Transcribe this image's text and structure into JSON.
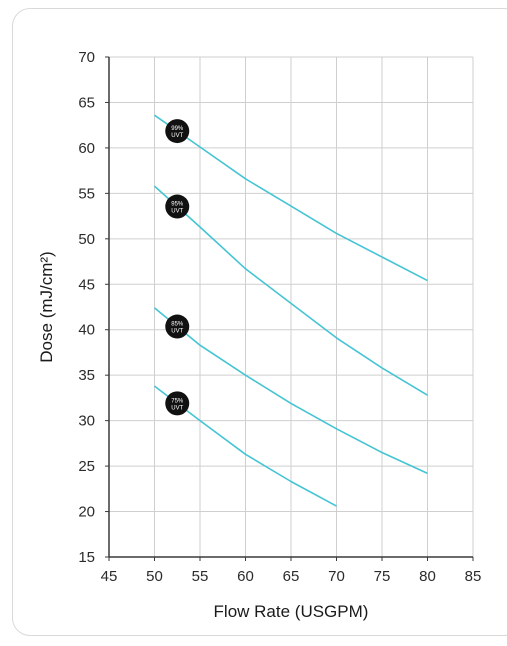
{
  "chart_data": {
    "type": "line",
    "xlabel": "Flow Rate (USGPM)",
    "ylabel": "Dose (mJ/cm²)",
    "xlim": [
      45,
      85
    ],
    "ylim": [
      15,
      70
    ],
    "x_ticks": [
      45,
      50,
      55,
      60,
      65,
      70,
      75,
      80,
      85
    ],
    "y_ticks": [
      15,
      20,
      25,
      30,
      35,
      40,
      45,
      50,
      55,
      60,
      65,
      70
    ],
    "grid": true,
    "line_color": "#45c4d4",
    "series": [
      {
        "name": "99% UVT",
        "badge_lines": [
          "99%",
          "UVT"
        ],
        "badge_x": 52.5,
        "x": [
          50,
          55,
          60,
          65,
          70,
          75,
          80
        ],
        "y": [
          63.6,
          60.1,
          56.6,
          53.6,
          50.6,
          48.0,
          45.4
        ]
      },
      {
        "name": "95% UVT",
        "badge_lines": [
          "95%",
          "UVT"
        ],
        "badge_x": 52.5,
        "x": [
          50,
          55,
          60,
          65,
          70,
          75,
          80
        ],
        "y": [
          55.8,
          51.3,
          46.7,
          42.9,
          39.1,
          35.8,
          32.8
        ]
      },
      {
        "name": "85% UVT",
        "badge_lines": [
          "85%",
          "UVT"
        ],
        "badge_x": 52.5,
        "x": [
          50,
          55,
          60,
          65,
          70,
          75,
          80
        ],
        "y": [
          42.4,
          38.3,
          35.0,
          31.9,
          29.1,
          26.5,
          24.2
        ]
      },
      {
        "name": "75% UVT",
        "badge_lines": [
          "75%",
          "UVT"
        ],
        "badge_x": 52.5,
        "x": [
          50,
          55,
          60,
          65,
          70
        ],
        "y": [
          33.8,
          30.0,
          26.3,
          23.3,
          20.6
        ]
      }
    ]
  }
}
